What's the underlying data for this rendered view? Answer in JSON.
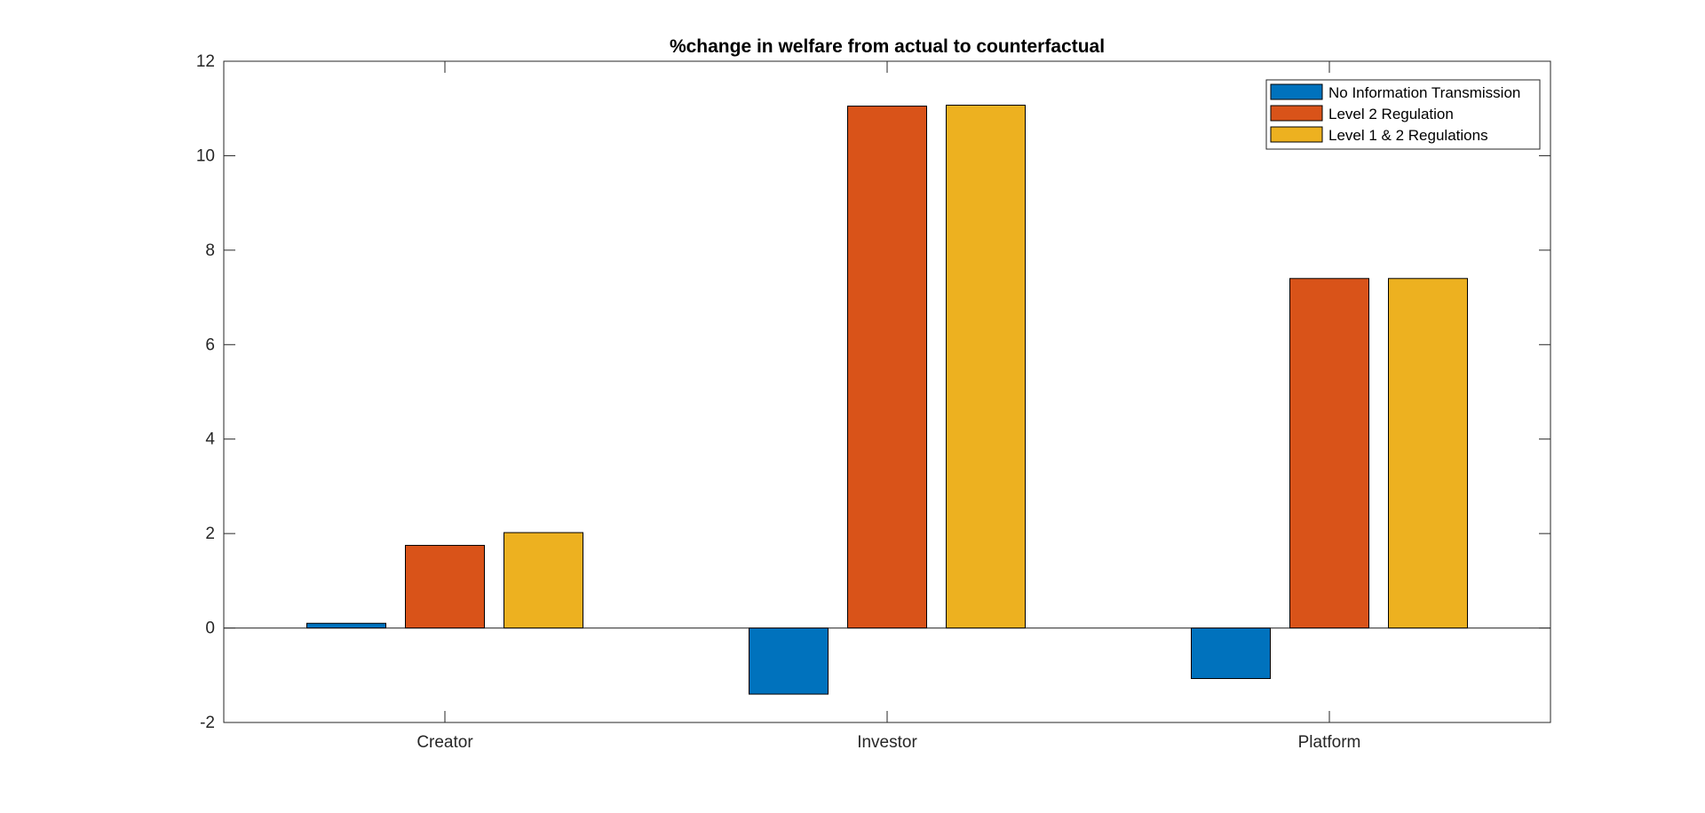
{
  "chart_data": {
    "type": "bar",
    "title": "%change in welfare from actual to counterfactual",
    "xlabel": "",
    "ylabel": "",
    "categories": [
      "Creator",
      "Investor",
      "Platform"
    ],
    "series": [
      {
        "name": "No Information Transmission",
        "color": "#0072BD",
        "values": [
          0.1,
          -1.4,
          -1.07
        ]
      },
      {
        "name": "Level 2 Regulation",
        "color": "#D95319",
        "values": [
          1.75,
          11.05,
          7.4
        ]
      },
      {
        "name": "Level 1 & 2 Regulations",
        "color": "#EDB120",
        "values": [
          2.02,
          11.07,
          7.4
        ]
      }
    ],
    "ylim": [
      -2,
      12
    ],
    "yticks": [
      -2,
      0,
      2,
      4,
      6,
      8,
      10,
      12
    ],
    "grid": false,
    "legend_position": "top-right"
  }
}
